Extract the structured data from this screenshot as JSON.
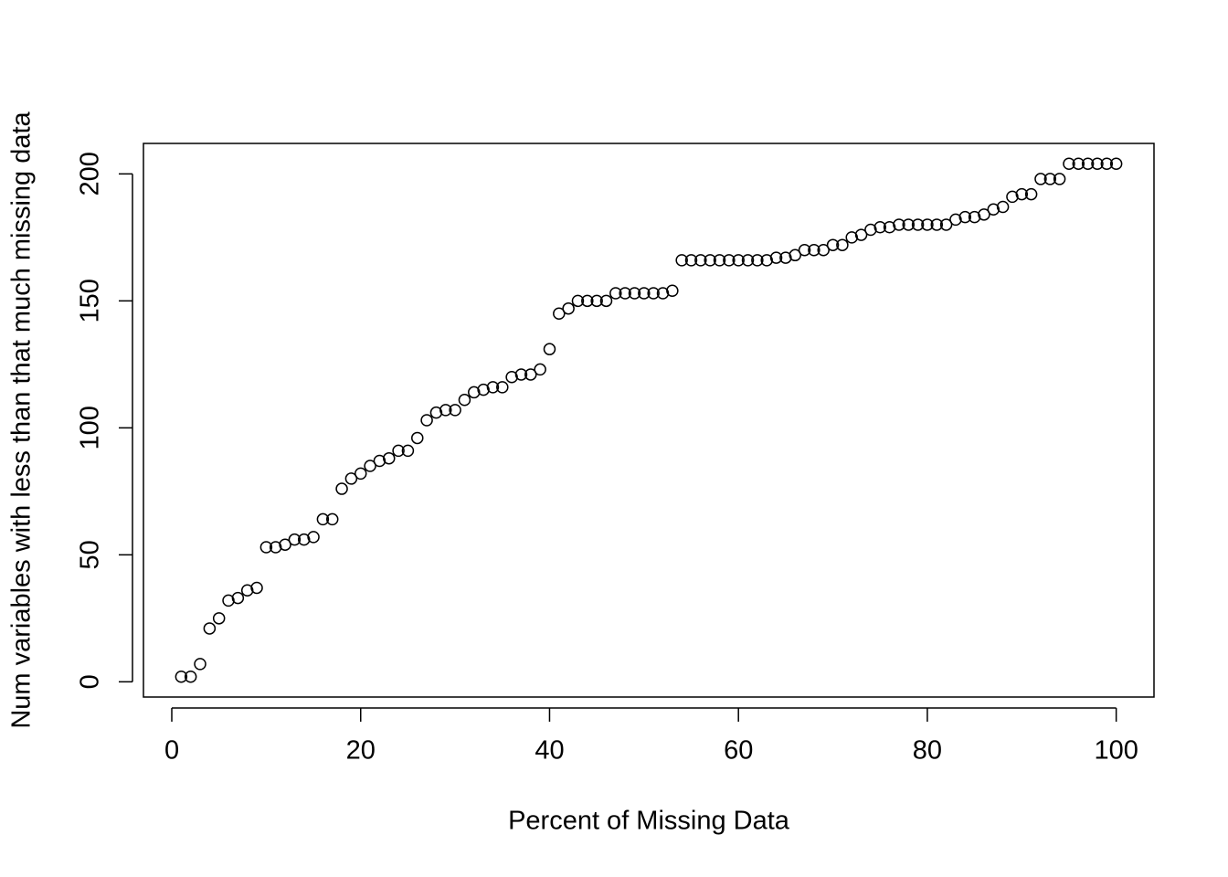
{
  "chart_data": {
    "type": "scatter",
    "x_label": "Percent of Missing Data",
    "y_label": "Num variables with less than that much missing data",
    "x": [
      1,
      2,
      3,
      4,
      5,
      6,
      7,
      8,
      9,
      10,
      11,
      12,
      13,
      14,
      15,
      16,
      17,
      18,
      19,
      20,
      21,
      22,
      23,
      24,
      25,
      26,
      27,
      28,
      29,
      30,
      31,
      32,
      33,
      34,
      35,
      36,
      37,
      38,
      39,
      40,
      41,
      42,
      43,
      44,
      45,
      46,
      47,
      48,
      49,
      50,
      51,
      52,
      53,
      54,
      55,
      56,
      57,
      58,
      59,
      60,
      61,
      62,
      63,
      64,
      65,
      66,
      67,
      68,
      69,
      70,
      71,
      72,
      73,
      74,
      75,
      76,
      77,
      78,
      79,
      80,
      81,
      82,
      83,
      84,
      85,
      86,
      87,
      88,
      89,
      90,
      91,
      92,
      93,
      94,
      95,
      96,
      97,
      98,
      99,
      100
    ],
    "values": [
      2,
      2,
      7,
      21,
      25,
      32,
      33,
      36,
      37,
      53,
      53,
      54,
      56,
      56,
      57,
      64,
      64,
      76,
      80,
      82,
      85,
      87,
      88,
      91,
      91,
      96,
      103,
      106,
      107,
      107,
      111,
      114,
      115,
      116,
      116,
      120,
      121,
      121,
      123,
      131,
      145,
      147,
      150,
      150,
      150,
      150,
      153,
      153,
      153,
      153,
      153,
      153,
      154,
      166,
      166,
      166,
      166,
      166,
      166,
      166,
      166,
      166,
      166,
      167,
      167,
      168,
      170,
      170,
      170,
      172,
      172,
      175,
      176,
      178,
      179,
      179,
      180,
      180,
      180,
      180,
      180,
      180,
      182,
      183,
      183,
      184,
      186,
      187,
      191,
      192,
      192,
      198,
      198,
      198,
      204,
      204,
      204,
      204,
      204,
      204
    ],
    "color": "#000000",
    "xlim": [
      -3,
      104
    ],
    "ylim": [
      -6,
      212
    ],
    "xticks": [
      0,
      20,
      40,
      60,
      80,
      100
    ],
    "yticks": [
      0,
      50,
      100,
      150,
      200
    ]
  }
}
